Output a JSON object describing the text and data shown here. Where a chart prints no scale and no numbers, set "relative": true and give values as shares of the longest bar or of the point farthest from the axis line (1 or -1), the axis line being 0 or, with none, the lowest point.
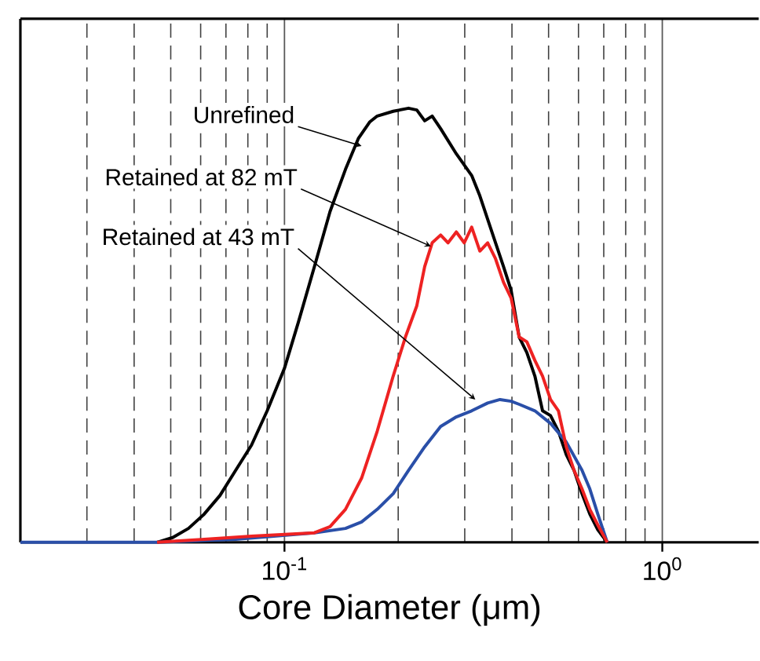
{
  "chart_data": {
    "type": "line",
    "relative": true,
    "log": "x",
    "grid": "x",
    "tick_labels": "x",
    "xlabel": "Core Diameter (μm)",
    "xlim": [
      0.02,
      1.8
    ],
    "xticks": [
      {
        "value": 0.1,
        "label": "10$^{-1}$"
      },
      {
        "value": 1,
        "label": "10$^{0}$"
      }
    ],
    "series": [
      {
        "color": "#000000",
        "x": [
          0.046,
          0.0506,
          0.0557,
          0.0613,
          0.0675,
          0.0743,
          0.0818,
          0.09,
          0.1,
          0.109,
          0.12,
          0.132,
          0.145,
          0.157,
          0.168,
          0.176,
          0.194,
          0.213,
          0.224,
          0.235,
          0.246,
          0.259,
          0.285,
          0.313,
          0.329,
          0.345,
          0.362,
          0.38,
          0.398,
          0.418,
          0.438,
          0.46,
          0.482,
          0.506,
          0.531,
          0.557,
          0.584,
          0.613,
          0.643,
          0.675,
          0.715
        ],
        "values": [
          0,
          0.011,
          0.032,
          0.065,
          0.108,
          0.166,
          0.224,
          0.303,
          0.401,
          0.509,
          0.635,
          0.762,
          0.859,
          0.931,
          0.968,
          0.982,
          0.993,
          1,
          0.996,
          0.971,
          0.982,
          0.953,
          0.895,
          0.845,
          0.798,
          0.744,
          0.69,
          0.635,
          0.581,
          0.473,
          0.437,
          0.383,
          0.303,
          0.292,
          0.256,
          0.202,
          0.166,
          0.112,
          0.065,
          0.029,
          0
        ]
      },
      {
        "color": "#ee2222",
        "x": [
          0.046,
          0.0613,
          0.0818,
          0.12,
          0.132,
          0.145,
          0.16,
          0.176,
          0.194,
          0.209,
          0.224,
          0.235,
          0.246,
          0.259,
          0.271,
          0.285,
          0.299,
          0.313,
          0.329,
          0.345,
          0.362,
          0.38,
          0.398,
          0.418,
          0.438,
          0.46,
          0.482,
          0.506,
          0.531,
          0.557,
          0.584,
          0.613,
          0.643,
          0.675,
          0.715
        ],
        "values": [
          0,
          0.007,
          0.014,
          0.022,
          0.036,
          0.076,
          0.148,
          0.256,
          0.383,
          0.473,
          0.545,
          0.635,
          0.69,
          0.708,
          0.69,
          0.715,
          0.69,
          0.726,
          0.671,
          0.69,
          0.653,
          0.599,
          0.563,
          0.473,
          0.462,
          0.419,
          0.383,
          0.329,
          0.303,
          0.22,
          0.166,
          0.123,
          0.076,
          0.04,
          0
        ]
      },
      {
        "color": "#2a4fa8",
        "x": [
          0.02,
          0.046,
          0.0743,
          0.12,
          0.145,
          0.16,
          0.176,
          0.194,
          0.213,
          0.235,
          0.259,
          0.285,
          0.313,
          0.345,
          0.372,
          0.398,
          0.418,
          0.46,
          0.506,
          0.557,
          0.613,
          0.643,
          0.675,
          0.715
        ],
        "values": [
          0,
          0,
          0.007,
          0.022,
          0.032,
          0.047,
          0.076,
          0.112,
          0.166,
          0.22,
          0.267,
          0.289,
          0.303,
          0.321,
          0.329,
          0.325,
          0.318,
          0.303,
          0.274,
          0.231,
          0.166,
          0.123,
          0.065,
          0
        ]
      }
    ],
    "annotations": [
      {
        "text": "Unrefined",
        "x": 0.16,
        "y": 0.913
      },
      {
        "text": "Retained at 82 mT",
        "x": 0.244,
        "y": 0.682
      },
      {
        "text": "Retained at 43 mT",
        "x": 0.32,
        "y": 0.329
      }
    ]
  }
}
